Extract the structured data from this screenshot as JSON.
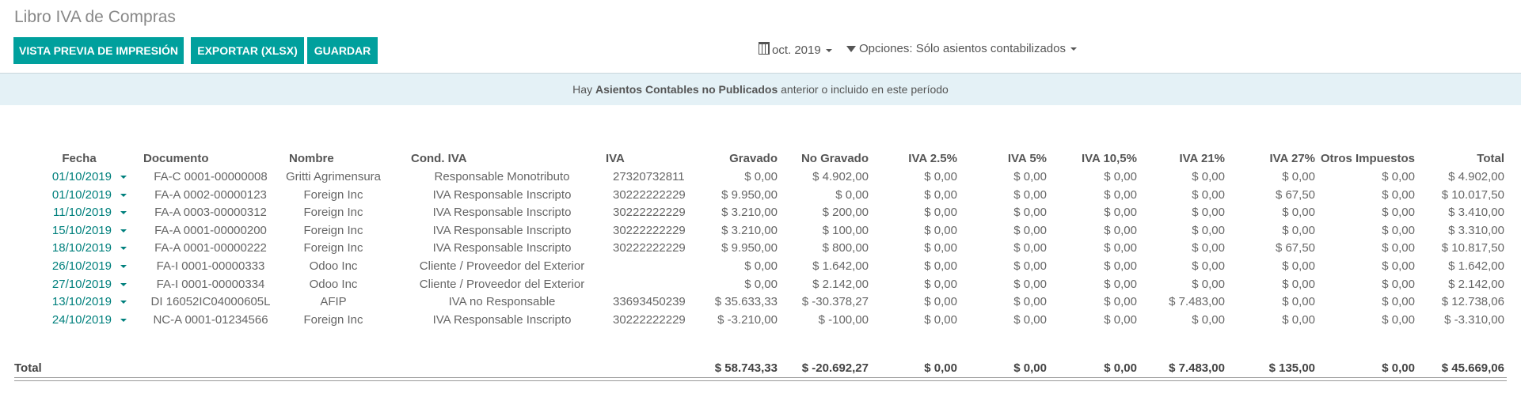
{
  "title": "Libro IVA de Compras",
  "buttons": {
    "print_preview": "VISTA PREVIA DE IMPRESIÓN",
    "export": "EXPORTAR (XLSX)",
    "save": "GUARDAR"
  },
  "filters": {
    "date": "oct. 2019",
    "options": "Opciones: Sólo asientos contabilizados"
  },
  "banner": {
    "prefix": "Hay ",
    "bold": "Asientos Contables no Publicados",
    "suffix": " anterior o incluido en este período"
  },
  "accent_color": "#00a09d",
  "table": {
    "headers": [
      "Fecha",
      "Documento",
      "Nombre",
      "Cond. IVA",
      "IVA",
      "Gravado",
      "No Gravado",
      "IVA 2.5%",
      "IVA 5%",
      "IVA 10,5%",
      "IVA 21%",
      "IVA 27%",
      "Otros Impuestos",
      "Total"
    ],
    "rows": [
      [
        "01/10/2019",
        "FA-C 0001-00000008",
        "Gritti Agrimensura",
        "Responsable Monotributo",
        "27320732811",
        "$ 0,00",
        "$ 4.902,00",
        "$ 0,00",
        "$ 0,00",
        "$ 0,00",
        "$ 0,00",
        "$ 0,00",
        "$ 0,00",
        "$ 4.902,00"
      ],
      [
        "01/10/2019",
        "FA-A 0002-00000123",
        "Foreign Inc",
        "IVA Responsable Inscripto",
        "30222222229",
        "$ 9.950,00",
        "$ 0,00",
        "$ 0,00",
        "$ 0,00",
        "$ 0,00",
        "$ 0,00",
        "$ 67,50",
        "$ 0,00",
        "$ 10.017,50"
      ],
      [
        "11/10/2019",
        "FA-A 0003-00000312",
        "Foreign Inc",
        "IVA Responsable Inscripto",
        "30222222229",
        "$ 3.210,00",
        "$ 200,00",
        "$ 0,00",
        "$ 0,00",
        "$ 0,00",
        "$ 0,00",
        "$ 0,00",
        "$ 0,00",
        "$ 3.410,00"
      ],
      [
        "15/10/2019",
        "FA-A 0001-00000200",
        "Foreign Inc",
        "IVA Responsable Inscripto",
        "30222222229",
        "$ 3.210,00",
        "$ 100,00",
        "$ 0,00",
        "$ 0,00",
        "$ 0,00",
        "$ 0,00",
        "$ 0,00",
        "$ 0,00",
        "$ 3.310,00"
      ],
      [
        "18/10/2019",
        "FA-A 0001-00000222",
        "Foreign Inc",
        "IVA Responsable Inscripto",
        "30222222229",
        "$ 9.950,00",
        "$ 800,00",
        "$ 0,00",
        "$ 0,00",
        "$ 0,00",
        "$ 0,00",
        "$ 67,50",
        "$ 0,00",
        "$ 10.817,50"
      ],
      [
        "26/10/2019",
        "FA-I 0001-00000333",
        "Odoo Inc",
        "Cliente / Proveedor del Exterior",
        "",
        "$ 0,00",
        "$ 1.642,00",
        "$ 0,00",
        "$ 0,00",
        "$ 0,00",
        "$ 0,00",
        "$ 0,00",
        "$ 0,00",
        "$ 1.642,00"
      ],
      [
        "27/10/2019",
        "FA-I 0001-00000334",
        "Odoo Inc",
        "Cliente / Proveedor del Exterior",
        "",
        "$ 0,00",
        "$ 2.142,00",
        "$ 0,00",
        "$ 0,00",
        "$ 0,00",
        "$ 0,00",
        "$ 0,00",
        "$ 0,00",
        "$ 2.142,00"
      ],
      [
        "13/10/2019",
        "DI 16052IC04000605L",
        "AFIP",
        "IVA no Responsable",
        "33693450239",
        "$ 35.633,33",
        "$ -30.378,27",
        "$ 0,00",
        "$ 0,00",
        "$ 0,00",
        "$ 7.483,00",
        "$ 0,00",
        "$ 0,00",
        "$ 12.738,06"
      ],
      [
        "24/10/2019",
        "NC-A 0001-01234566",
        "Foreign Inc",
        "IVA Responsable Inscripto",
        "30222222229",
        "$ -3.210,00",
        "$ -100,00",
        "$ 0,00",
        "$ 0,00",
        "$ 0,00",
        "$ 0,00",
        "$ 0,00",
        "$ 0,00",
        "$ -3.310,00"
      ]
    ],
    "total": [
      "Total",
      "",
      "",
      "",
      "",
      "$ 58.743,33",
      "$ -20.692,27",
      "$ 0,00",
      "$ 0,00",
      "$ 0,00",
      "$ 7.483,00",
      "$ 135,00",
      "$ 0,00",
      "$ 45.669,06"
    ]
  }
}
